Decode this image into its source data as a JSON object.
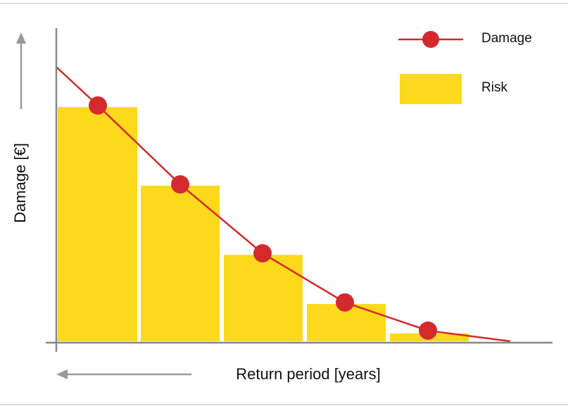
{
  "chart_data": {
    "type": "combo",
    "ylabel": "Damage [€]",
    "xlabel": "Return period [years]",
    "xlim": [
      0,
      705
    ],
    "ylim": [
      0,
      100
    ],
    "legend": "top-right",
    "series": [
      {
        "name": "Risk",
        "type": "bar",
        "color": "#fcd91a",
        "x_start": [
          2,
          120,
          238,
          356,
          474
        ],
        "x_end": [
          115,
          232,
          350,
          468,
          586
        ],
        "values": [
          74.8,
          49.7,
          27.6,
          11.9,
          2.5
        ]
      },
      {
        "name": "Damage",
        "type": "line",
        "color": "#d42a2e",
        "x": [
          0,
          59,
          176,
          293,
          410,
          528,
          645
        ],
        "values": [
          87.6,
          75.3,
          50.1,
          28.1,
          12.4,
          3.4,
          0
        ],
        "markers": [
          false,
          true,
          true,
          true,
          true,
          true,
          false
        ]
      }
    ]
  }
}
